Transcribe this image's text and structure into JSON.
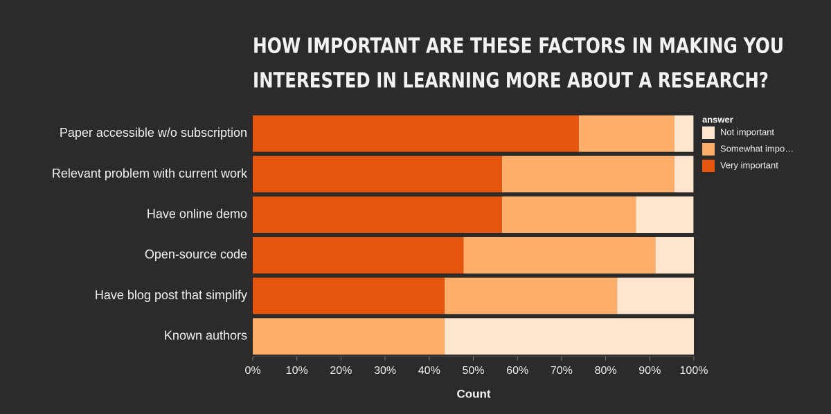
{
  "chart_data": {
    "type": "stacked_bar_horizontal",
    "title": [
      "HOW IMPORTANT ARE THESE FACTORS IN MAKING YOU",
      "INTERESTED IN LEARNING MORE ABOUT A RESEARCH?"
    ],
    "x_label": "Count",
    "legend_title": "answer",
    "categories": [
      "Paper accessible w/o subscription",
      "Relevant problem with current work",
      "Have online demo",
      "Open-source code",
      "Have blog post that simplify",
      "Known authors"
    ],
    "series": [
      {
        "name": "Very important",
        "color": "#e6550d",
        "values": [
          73.9,
          56.5,
          56.5,
          47.8,
          43.5,
          0
        ]
      },
      {
        "name": "Somewhat impo…",
        "color": "#fdae6b",
        "values": [
          21.7,
          39.1,
          30.4,
          43.5,
          39.1,
          43.5
        ]
      },
      {
        "name": "Not important",
        "color": "#fee6ce",
        "values": [
          4.3,
          4.3,
          13.0,
          8.7,
          17.4,
          56.5
        ]
      }
    ],
    "xlim": [
      0,
      100
    ],
    "xticks": [
      {
        "value": 0,
        "label": "0%"
      },
      {
        "value": 10,
        "label": "10%"
      },
      {
        "value": 20,
        "label": "20%"
      },
      {
        "value": 30,
        "label": "30%"
      },
      {
        "value": 40,
        "label": "40%"
      },
      {
        "value": 50,
        "label": "50%"
      },
      {
        "value": 60,
        "label": "60%"
      },
      {
        "value": 70,
        "label": "70%"
      },
      {
        "value": 80,
        "label": "80%"
      },
      {
        "value": 90,
        "label": "90%"
      },
      {
        "value": 100,
        "label": "100%"
      }
    ]
  }
}
